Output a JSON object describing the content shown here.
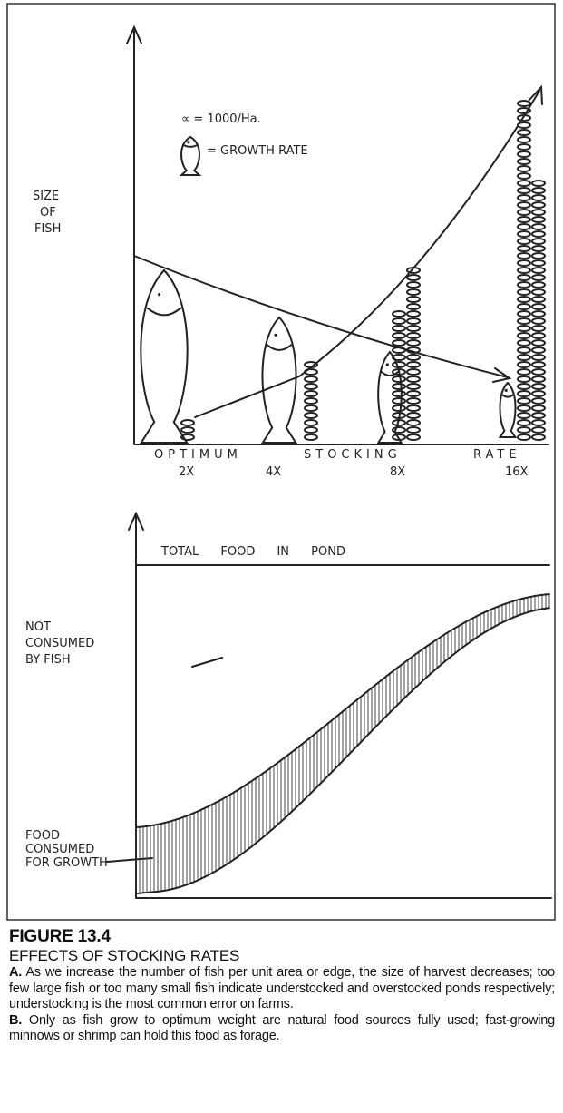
{
  "figure": {
    "top_chart": {
      "y_label": [
        "SIZE",
        "OF",
        "FISH"
      ],
      "legend": {
        "density": "∝ = 1000/Ha.",
        "growth": "= GROWTH RATE"
      },
      "x_label": [
        "OPTIMUM",
        "STOCKING",
        "RATE"
      ],
      "rates": [
        "2X",
        "4X",
        "8X",
        "16X"
      ]
    },
    "bottom_chart": {
      "total_label": "TOTAL FOOD IN POND",
      "not_consumed": [
        "NOT",
        "CONSUMED",
        "BY FISH"
      ],
      "consumed": [
        "FOOD",
        "CONSUMED",
        "FOR GROWTH"
      ]
    },
    "caption": {
      "number": "FIGURE 13.4",
      "title": "EFFECTS OF STOCKING RATES",
      "a_mark": "A.",
      "a_text": "As we increase the number of fish per unit area or edge, the size of harvest decreases; too few large fish or too many small fish indicate understocked and overstocked ponds respectively; understocking is the most common error on farms.",
      "b_mark": "B.",
      "b_text": "Only as fish grow to optimum weight are natural food sources fully used; fast-growing minnows or shrimp can hold this food as forage."
    }
  }
}
